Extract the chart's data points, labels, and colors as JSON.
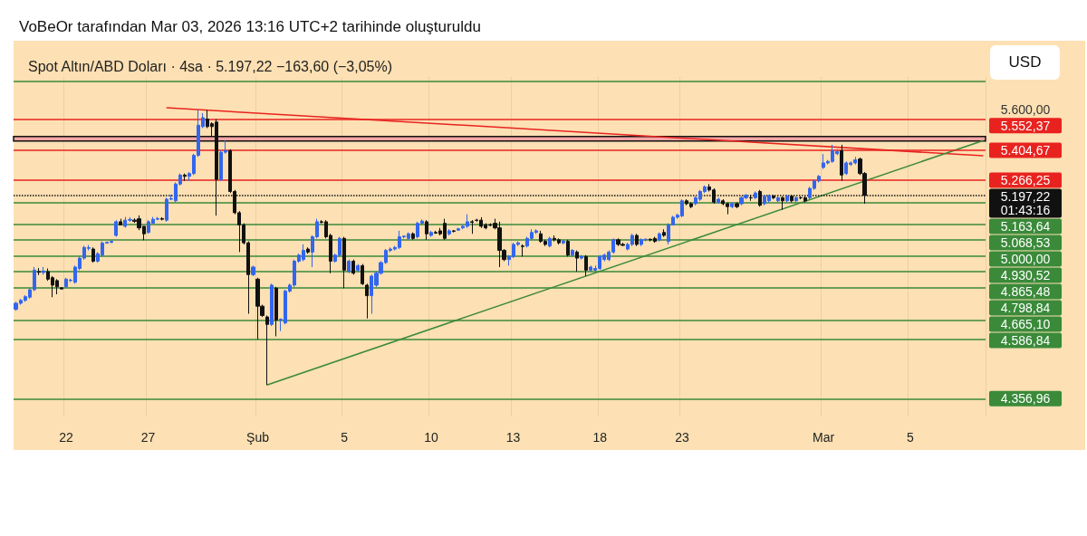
{
  "chart_data": {
    "type": "candlestick",
    "title": "VoBeOr tarafından Mar 03, 2026 13:16 UTC+2 tarihinde oluşturuldu",
    "subtitle": "Spot Altın/ABD Doları · 4sa · 5.197,22 −163,60 (−3,05%)",
    "annotations": [
      "USD"
    ],
    "categories": [
      null,
      null,
      null,
      null,
      null,
      null,
      null,
      null,
      null,
      null,
      null,
      "22",
      null,
      null,
      null,
      null,
      null,
      null,
      null,
      null,
      null,
      null,
      null,
      null,
      null,
      null,
      null,
      null,
      null,
      "27",
      null,
      null,
      null,
      null,
      null,
      null,
      null,
      null,
      null,
      null,
      null,
      null,
      null,
      null,
      null,
      null,
      null,
      null,
      null,
      null,
      null,
      null,
      null,
      "Şub",
      null,
      null,
      null,
      null,
      null,
      null,
      null,
      null,
      null,
      null,
      null,
      null,
      null,
      null,
      null,
      null,
      null,
      null,
      "5",
      null,
      null,
      null,
      null,
      null,
      null,
      null,
      null,
      null,
      null,
      null,
      null,
      null,
      null,
      null,
      null,
      null,
      null,
      "10",
      null,
      null,
      null,
      null,
      null,
      null,
      null,
      null,
      null,
      null,
      null,
      null,
      null,
      null,
      null,
      null,
      null,
      "13",
      null,
      null,
      null,
      null,
      null,
      null,
      null,
      null,
      null,
      null,
      null,
      null,
      null,
      null,
      null,
      null,
      null,
      null,
      "18",
      null,
      null,
      null,
      null,
      null,
      null,
      null,
      null,
      null,
      null,
      null,
      null,
      null,
      null,
      null,
      null,
      null,
      "23",
      null,
      null,
      null,
      null,
      null,
      null,
      null,
      null,
      null,
      null,
      null,
      null,
      null,
      null,
      null,
      null,
      null,
      null,
      null,
      null,
      null,
      null,
      null,
      null,
      null,
      null,
      null,
      null,
      null,
      null,
      "Mar",
      null,
      null,
      null,
      null,
      null,
      null,
      null,
      null,
      null,
      null,
      null,
      null,
      null,
      null,
      null,
      null,
      null,
      null,
      "5",
      null,
      null,
      null,
      null,
      null,
      null,
      null,
      null,
      null,
      null,
      null,
      null,
      null,
      null,
      null,
      null
    ],
    "ohlc": [
      [
        4708,
        4739,
        4702,
        4733
      ],
      [
        4733,
        4751,
        4727,
        4745
      ],
      [
        4745,
        4766,
        4739,
        4760
      ],
      [
        4758,
        4795,
        4752,
        4789
      ],
      [
        4789,
        4884,
        4783,
        4871
      ],
      [
        4865,
        4880,
        4850,
        4862
      ],
      [
        4861,
        4884,
        4852,
        4867
      ],
      [
        4865,
        4878,
        4826,
        4833
      ],
      [
        4839,
        4846,
        4758,
        4808
      ],
      [
        4827,
        4833,
        4770,
        4801
      ],
      [
        4797,
        4797,
        4792,
        4792
      ],
      [
        4801,
        4839,
        4795,
        4833
      ],
      [
        4827,
        4835,
        4821,
        4829
      ],
      [
        4820,
        4890,
        4814,
        4884
      ],
      [
        4878,
        4928,
        4871,
        4922
      ],
      [
        4922,
        4975,
        4915,
        4968
      ],
      [
        4964,
        4978,
        4955,
        4967
      ],
      [
        4961,
        4968,
        4903,
        4909
      ],
      [
        4909,
        4948,
        4903,
        4941
      ],
      [
        4935,
        4994,
        4928,
        4987
      ],
      [
        4987,
        4994,
        4984,
        4990
      ],
      [
        4990,
        4998,
        4986,
        4994
      ],
      [
        5020,
        5087,
        5014,
        5080
      ],
      [
        5080,
        5093,
        5066,
        5066
      ],
      [
        5060,
        5101,
        5054,
        5087
      ],
      [
        5087,
        5100,
        5080,
        5090
      ],
      [
        5087,
        5095,
        5075,
        5082
      ],
      [
        5093,
        5108,
        5043,
        5053
      ],
      [
        5060,
        5060,
        4999,
        5027
      ],
      [
        5033,
        5087,
        5027,
        5080
      ],
      [
        5073,
        5101,
        5073,
        5091
      ],
      [
        5091,
        5101,
        5087,
        5094
      ],
      [
        5094,
        5100,
        5086,
        5091
      ],
      [
        5087,
        5187,
        5080,
        5180
      ],
      [
        5180,
        5200,
        5176,
        5183
      ],
      [
        5173,
        5256,
        5166,
        5249
      ],
      [
        5249,
        5297,
        5242,
        5290
      ],
      [
        5290,
        5297,
        5263,
        5284
      ],
      [
        5284,
        5304,
        5263,
        5297
      ],
      [
        5297,
        5388,
        5290,
        5381
      ],
      [
        5381,
        5597,
        5374,
        5524
      ],
      [
        5517,
        5582,
        5510,
        5560
      ],
      [
        5553,
        5597,
        5510,
        5517
      ],
      [
        5531,
        5538,
        5473,
        5517
      ],
      [
        5539,
        5553,
        5107,
        5270
      ],
      [
        5270,
        5403,
        5263,
        5396
      ],
      [
        5396,
        5452,
        5389,
        5403
      ],
      [
        5403,
        5410,
        5208,
        5215
      ],
      [
        5215,
        5222,
        5113,
        5120
      ],
      [
        5120,
        5127,
        4948,
        5066
      ],
      [
        5066,
        5073,
        4981,
        4988
      ],
      [
        4988,
        4994,
        4690,
        4852
      ],
      [
        4852,
        4890,
        4846,
        4884
      ],
      [
        4833,
        4839,
        4587,
        4721
      ],
      [
        4721,
        4727,
        4677,
        4683
      ],
      [
        4677,
        4683,
        4409,
        4647
      ],
      [
        4647,
        4814,
        4641,
        4808
      ],
      [
        4795,
        4801,
        4599,
        4665
      ],
      [
        4665,
        4671,
        4620,
        4668
      ],
      [
        4653,
        4789,
        4647,
        4783
      ],
      [
        4783,
        4814,
        4777,
        4808
      ],
      [
        4808,
        4916,
        4801,
        4909
      ],
      [
        4909,
        4941,
        4903,
        4935
      ],
      [
        4916,
        4981,
        4909,
        4955
      ],
      [
        4961,
        4968,
        4941,
        4948
      ],
      [
        4948,
        5020,
        4884,
        5014
      ],
      [
        5014,
        5093,
        5007,
        5080
      ],
      [
        5080,
        5087,
        5073,
        5077
      ],
      [
        5080,
        5087,
        5007,
        5014
      ],
      [
        5020,
        5027,
        4858,
        4909
      ],
      [
        4909,
        4941,
        4903,
        4935
      ],
      [
        4935,
        5014,
        4928,
        5007
      ],
      [
        5007,
        5014,
        4795,
        4871
      ],
      [
        4865,
        4916,
        4858,
        4909
      ],
      [
        4909,
        4916,
        4852,
        4858
      ],
      [
        4871,
        4897,
        4865,
        4890
      ],
      [
        4890,
        4897,
        4808,
        4814
      ],
      [
        4808,
        4814,
        4671,
        4764
      ],
      [
        4764,
        4852,
        4690,
        4846
      ],
      [
        4808,
        4865,
        4801,
        4858
      ],
      [
        4858,
        4909,
        4852,
        4903
      ],
      [
        4903,
        4961,
        4897,
        4955
      ],
      [
        4955,
        4968,
        4948,
        4961
      ],
      [
        4961,
        4974,
        4955,
        4968
      ],
      [
        4968,
        5040,
        4961,
        5014
      ],
      [
        5014,
        5020,
        5007,
        5017
      ],
      [
        5007,
        5033,
        5001,
        5027
      ],
      [
        5027,
        5033,
        5001,
        5007
      ],
      [
        5014,
        5080,
        5007,
        5073
      ],
      [
        5073,
        5090,
        5066,
        5083
      ],
      [
        5080,
        5087,
        5001,
        5027
      ],
      [
        5020,
        5040,
        5014,
        5033
      ],
      [
        5033,
        5040,
        5027,
        5030
      ],
      [
        5040,
        5053,
        5020,
        5027
      ],
      [
        5073,
        5093,
        5001,
        5007
      ],
      [
        5027,
        5047,
        5020,
        5040
      ],
      [
        5040,
        5043,
        5033,
        5038
      ],
      [
        5043,
        5053,
        5040,
        5049
      ],
      [
        5053,
        5066,
        5047,
        5060
      ],
      [
        5060,
        5113,
        5053,
        5080
      ],
      [
        5080,
        5087,
        5027,
        5077
      ],
      [
        5087,
        5093,
        5080,
        5086
      ],
      [
        5087,
        5100,
        5053,
        5060
      ],
      [
        5066,
        5073,
        5047,
        5053
      ],
      [
        5066,
        5073,
        5060,
        5064
      ],
      [
        5073,
        5093,
        5047,
        5053
      ],
      [
        5053,
        5080,
        4884,
        4955
      ],
      [
        4955,
        4961,
        4909,
        4916
      ],
      [
        4916,
        4935,
        4890,
        4929
      ],
      [
        4929,
        4988,
        4922,
        4981
      ],
      [
        4981,
        4994,
        4974,
        4988
      ],
      [
        4974,
        4981,
        4929,
        4972
      ],
      [
        4974,
        5014,
        4968,
        5007
      ],
      [
        5007,
        5047,
        5001,
        5033
      ],
      [
        5033,
        5047,
        5027,
        5040
      ],
      [
        5027,
        5040,
        4988,
        4994
      ],
      [
        4994,
        5001,
        4974,
        4981
      ],
      [
        4974,
        5014,
        4968,
        5007
      ],
      [
        5007,
        5020,
        4994,
        5001
      ],
      [
        5001,
        5007,
        4981,
        4988
      ],
      [
        4988,
        5001,
        4981,
        4994
      ],
      [
        4994,
        5001,
        4929,
        4935
      ],
      [
        4935,
        4961,
        4929,
        4955
      ],
      [
        4948,
        4955,
        4865,
        4922
      ],
      [
        4922,
        4935,
        4916,
        4929
      ],
      [
        4929,
        4935,
        4846,
        4871
      ],
      [
        4871,
        4890,
        4865,
        4884
      ],
      [
        4871,
        4890,
        4865,
        4878
      ],
      [
        4878,
        4935,
        4871,
        4929
      ],
      [
        4916,
        4941,
        4909,
        4935
      ],
      [
        4916,
        4955,
        4909,
        4948
      ],
      [
        4948,
        5007,
        4941,
        5001
      ],
      [
        5001,
        5007,
        4974,
        4981
      ],
      [
        4981,
        4988,
        4974,
        4977
      ],
      [
        4961,
        4988,
        4955,
        4981
      ],
      [
        4981,
        5027,
        4974,
        5020
      ],
      [
        5020,
        5027,
        4974,
        4981
      ],
      [
        4981,
        5007,
        4974,
        5001
      ],
      [
        5001,
        5007,
        4994,
        5003
      ],
      [
        5003,
        5007,
        4994,
        5001
      ],
      [
        5007,
        5014,
        4988,
        4994
      ],
      [
        5001,
        5033,
        4994,
        5027
      ],
      [
        5033,
        5047,
        5014,
        5020
      ],
      [
        4994,
        5073,
        4981,
        5066
      ],
      [
        5066,
        5106,
        5066,
        5100
      ],
      [
        5100,
        5116,
        5093,
        5109
      ],
      [
        5106,
        5180,
        5100,
        5173
      ],
      [
        5173,
        5180,
        5153,
        5160
      ],
      [
        5160,
        5166,
        5140,
        5147
      ],
      [
        5160,
        5193,
        5153,
        5187
      ],
      [
        5180,
        5222,
        5173,
        5215
      ],
      [
        5215,
        5242,
        5208,
        5236
      ],
      [
        5236,
        5249,
        5215,
        5222
      ],
      [
        5222,
        5229,
        5160,
        5167
      ],
      [
        5167,
        5187,
        5160,
        5180
      ],
      [
        5173,
        5180,
        5153,
        5160
      ],
      [
        5160,
        5166,
        5113,
        5147
      ],
      [
        5147,
        5166,
        5140,
        5160
      ],
      [
        5160,
        5166,
        5140,
        5147
      ],
      [
        5160,
        5193,
        5153,
        5187
      ],
      [
        5187,
        5204,
        5180,
        5198
      ],
      [
        5187,
        5200,
        5173,
        5186
      ],
      [
        5187,
        5215,
        5180,
        5208
      ],
      [
        5215,
        5222,
        5147,
        5153
      ],
      [
        5160,
        5200,
        5153,
        5194
      ],
      [
        5173,
        5200,
        5166,
        5194
      ],
      [
        5194,
        5200,
        5180,
        5187
      ],
      [
        5173,
        5193,
        5166,
        5187
      ],
      [
        5187,
        5193,
        5133,
        5173
      ],
      [
        5173,
        5200,
        5166,
        5194
      ],
      [
        5194,
        5200,
        5166,
        5173
      ],
      [
        5173,
        5193,
        5166,
        5187
      ],
      [
        5187,
        5193,
        5180,
        5186
      ],
      [
        5187,
        5193,
        5166,
        5173
      ],
      [
        5187,
        5236,
        5180,
        5229
      ],
      [
        5229,
        5270,
        5222,
        5263
      ],
      [
        5263,
        5290,
        5256,
        5284
      ],
      [
        5325,
        5387,
        5318,
        5346
      ],
      [
        5346,
        5360,
        5339,
        5353
      ],
      [
        5353,
        5431,
        5346,
        5403
      ],
      [
        5389,
        5410,
        5382,
        5399
      ],
      [
        5403,
        5431,
        5263,
        5290
      ],
      [
        5297,
        5353,
        5290,
        5346
      ],
      [
        5339,
        5353,
        5332,
        5346
      ],
      [
        5346,
        5374,
        5339,
        5360
      ],
      [
        5364,
        5371,
        5290,
        5297
      ],
      [
        5297,
        5304,
        5160,
        5197.22
      ],
      null,
      null,
      null,
      null,
      null,
      null,
      null,
      null,
      null,
      null,
      null,
      null,
      null,
      null,
      null,
      null,
      null,
      null,
      null,
      null,
      null,
      null,
      null,
      null,
      null,
      null
    ],
    "colors": [
      "#3366ee",
      "#3366ee",
      "#3366ee",
      "#3366ee",
      "#3366ee",
      "#111111",
      "#3366ee",
      "#111111",
      "#111111",
      "#111111",
      "#111111",
      "#3366ee",
      "#3366ee",
      "#3366ee",
      "#3366ee",
      "#3366ee",
      "#3366ee",
      "#111111",
      "#3366ee",
      "#3366ee",
      "#3366ee",
      "#3366ee",
      "#3366ee",
      "#111111",
      "#3366ee",
      "#3366ee",
      "#111111",
      "#111111",
      "#111111",
      "#3366ee",
      "#3366ee",
      "#3366ee",
      "#111111",
      "#3366ee",
      "#3366ee",
      "#3366ee",
      "#3366ee",
      "#111111",
      "#3366ee",
      "#3366ee",
      "#3366ee",
      "#3366ee",
      "#111111",
      "#111111",
      "#111111",
      "#3366ee",
      "#3366ee",
      "#111111",
      "#111111",
      "#111111",
      "#111111",
      "#111111",
      "#3366ee",
      "#111111",
      "#111111",
      "#111111",
      "#3366ee",
      "#111111",
      "#3366ee",
      "#3366ee",
      "#3366ee",
      "#3366ee",
      "#3366ee",
      "#3366ee",
      "#111111",
      "#3366ee",
      "#3366ee",
      "#111111",
      "#111111",
      "#111111",
      "#3366ee",
      "#3366ee",
      "#111111",
      "#3366ee",
      "#111111",
      "#3366ee",
      "#111111",
      "#111111",
      "#3366ee",
      "#3366ee",
      "#3366ee",
      "#3366ee",
      "#3366ee",
      "#3366ee",
      "#3366ee",
      "#3366ee",
      "#3366ee",
      "#111111",
      "#3366ee",
      "#3366ee",
      "#111111",
      "#3366ee",
      "#111111",
      "#111111",
      "#111111",
      "#3366ee",
      "#111111",
      "#3366ee",
      "#3366ee",
      "#3366ee",
      "#111111",
      "#111111",
      "#111111",
      "#111111",
      "#111111",
      "#111111",
      "#111111",
      "#111111",
      "#3366ee",
      "#3366ee",
      "#3366ee",
      "#111111",
      "#3366ee",
      "#3366ee",
      "#3366ee",
      "#111111",
      "#111111",
      "#3366ee",
      "#111111",
      "#111111",
      "#3366ee",
      "#111111",
      "#3366ee",
      "#111111",
      "#3366ee",
      "#111111",
      "#3366ee",
      "#3366ee",
      "#3366ee",
      "#3366ee",
      "#3366ee",
      "#3366ee",
      "#111111",
      "#111111",
      "#3366ee",
      "#3366ee",
      "#111111",
      "#3366ee",
      "#3366ee",
      "#111111",
      "#111111",
      "#3366ee",
      "#111111",
      "#3366ee",
      "#3366ee",
      "#3366ee",
      "#3366ee",
      "#111111",
      "#111111",
      "#3366ee",
      "#3366ee",
      "#3366ee",
      "#111111",
      "#111111",
      "#3366ee",
      "#111111",
      "#111111",
      "#3366ee",
      "#111111",
      "#3366ee",
      "#3366ee",
      "#111111",
      "#3366ee",
      "#111111",
      "#3366ee",
      "#3366ee",
      "#111111",
      "#3366ee",
      "#111111",
      "#3366ee",
      "#111111",
      "#3366ee",
      "#111111",
      "#111111",
      "#3366ee",
      "#3366ee",
      "#3366ee",
      "#3366ee",
      "#3366ee",
      "#3366ee",
      "#3366ee",
      "#111111",
      "#3366ee",
      "#3366ee",
      "#3366ee",
      "#111111",
      "#111111",
      null,
      null,
      null,
      null,
      null,
      null,
      null,
      null,
      null,
      null,
      null,
      null,
      null,
      null,
      null,
      null,
      null,
      null,
      null,
      null,
      null,
      null,
      null,
      null,
      null,
      null
    ],
    "series": [
      {
        "type": "line",
        "color": "#e8231f",
        "values": [
          null,
          null,
          null,
          null,
          null,
          null,
          null,
          null,
          null,
          null,
          null,
          null,
          null,
          null,
          null,
          null,
          null,
          null,
          null,
          null,
          null,
          null,
          null,
          null,
          null,
          null,
          null,
          null,
          null,
          null,
          null,
          null,
          null,
          5608,
          null,
          null,
          null,
          null,
          null,
          null,
          null,
          null,
          null,
          null,
          null,
          null,
          null,
          null,
          null,
          null,
          null,
          null,
          null,
          null,
          null,
          null,
          null,
          null,
          null,
          null,
          null,
          null,
          null,
          null,
          null,
          null,
          null,
          null,
          null,
          null,
          null,
          null,
          null,
          null,
          null,
          null,
          null,
          null,
          null,
          null,
          null,
          null,
          null,
          null,
          null,
          null,
          null,
          null,
          null,
          null,
          null,
          null,
          null,
          null,
          null,
          null,
          null,
          null,
          null,
          null,
          null,
          null,
          null,
          null,
          null,
          null,
          null,
          null,
          null,
          null,
          null,
          null,
          null,
          null,
          null,
          null,
          null,
          null,
          null,
          null,
          null,
          null,
          null,
          null,
          null,
          null,
          null,
          null,
          null,
          null,
          null,
          null,
          null,
          null,
          null,
          null,
          null,
          null,
          null,
          null,
          null,
          null,
          null,
          null,
          null,
          null,
          null,
          null,
          null,
          null,
          null,
          null,
          null,
          null,
          null,
          null,
          null,
          null,
          null,
          null,
          null,
          null,
          null,
          null,
          null,
          null,
          null,
          null,
          null,
          null,
          null,
          null,
          null,
          null,
          null,
          null,
          null,
          null,
          null,
          null,
          null,
          null,
          null,
          null,
          null,
          null,
          null,
          null,
          null,
          null,
          null,
          null,
          null,
          null,
          null,
          null,
          null,
          null,
          null,
          null,
          null,
          null,
          null,
          null,
          null,
          null,
          null,
          null,
          null,
          null,
          null,
          null,
          5379
        ]
      },
      {
        "type": "line",
        "color": "#3a8a3a",
        "values": [
          null,
          null,
          null,
          null,
          null,
          null,
          null,
          null,
          null,
          null,
          null,
          null,
          null,
          null,
          null,
          null,
          null,
          null,
          null,
          null,
          null,
          null,
          null,
          null,
          null,
          null,
          null,
          null,
          null,
          null,
          null,
          null,
          null,
          null,
          null,
          null,
          null,
          null,
          null,
          null,
          null,
          null,
          null,
          null,
          null,
          null,
          null,
          null,
          null,
          null,
          null,
          null,
          null,
          null,
          null,
          4409,
          null,
          null,
          null,
          null,
          null,
          null,
          null,
          null,
          null,
          null,
          null,
          null,
          null,
          null,
          null,
          null,
          null,
          null,
          null,
          null,
          null,
          null,
          null,
          null,
          null,
          null,
          null,
          null,
          null,
          null,
          null,
          null,
          null,
          null,
          null,
          null,
          null,
          null,
          null,
          null,
          null,
          null,
          null,
          null,
          null,
          null,
          null,
          null,
          null,
          null,
          null,
          null,
          null,
          null,
          null,
          null,
          null,
          null,
          null,
          null,
          null,
          null,
          null,
          null,
          null,
          null,
          null,
          null,
          null,
          null,
          null,
          null,
          null,
          null,
          null,
          null,
          null,
          null,
          null,
          null,
          null,
          null,
          null,
          null,
          null,
          null,
          null,
          null,
          null,
          null,
          null,
          null,
          null,
          null,
          null,
          null,
          null,
          null,
          null,
          null,
          null,
          null,
          null,
          null,
          null,
          null,
          null,
          null,
          null,
          null,
          null,
          null,
          null,
          null,
          null,
          null,
          null,
          null,
          null,
          null,
          null,
          null,
          null,
          null,
          null,
          null,
          null,
          null,
          null,
          null,
          null,
          null,
          null,
          null,
          null,
          null,
          null,
          null,
          null,
          null,
          null,
          null,
          null,
          null,
          null,
          null,
          null,
          null,
          null,
          null,
          null,
          null,
          null,
          null,
          null,
          null,
          5451
        ]
      }
    ],
    "ref_lines": [
      {
        "axis": "y",
        "value": 5737,
        "color": "#3a8a3a"
      },
      {
        "axis": "y",
        "value": 5552.37,
        "label": "5.552,37",
        "color": "#e8231f"
      },
      {
        "axis": "y",
        "value": 5404.67,
        "color": "#e8231f"
      },
      {
        "axis": "y",
        "value": 5266.25,
        "color": "#e8231f"
      },
      {
        "axis": "y",
        "value": 5197.22,
        "label": "5.197,22\n01:43:16",
        "color": "#111111",
        "line_style": "dotted"
      },
      {
        "axis": "y",
        "value": 5163.64,
        "label": "5.163,64",
        "color": "#3a8a3a"
      },
      {
        "axis": "y",
        "value": 5068.53,
        "label": "5.068,53",
        "color": "#3a8a3a"
      },
      {
        "axis": "y",
        "value": 5000,
        "label": "5.000,00",
        "color": "#3a8a3a"
      },
      {
        "axis": "y",
        "value": 4930.52,
        "label": "4.930,52",
        "color": "#3a8a3a"
      },
      {
        "axis": "y",
        "value": 4865.48,
        "label": "4.865,48",
        "color": "#3a8a3a"
      },
      {
        "axis": "y",
        "value": 4798.84,
        "label": "4.798,84",
        "color": "#3a8a3a"
      },
      {
        "axis": "y",
        "value": 4665.1,
        "label": "4.665,10",
        "color": "#3a8a3a"
      },
      {
        "axis": "y",
        "value": 4586.84,
        "label": "4.586,84",
        "color": "#3a8a3a"
      },
      {
        "axis": "y",
        "value": 4356.96,
        "color": "#3a8a3a"
      }
    ],
    "bands": [
      {
        "axis": "y",
        "from": 5449,
        "to": 5470,
        "color": "#f4a3a3"
      }
    ],
    "ylim": [
      4290,
      5760
    ],
    "yticks": [
      {
        "value": 5600,
        "label": "5.600,00"
      },
      {
        "value": 5404.67,
        "label": "5.404,67"
      },
      {
        "value": 5266.25,
        "label": "5.266,25"
      },
      {
        "value": 4356.96,
        "label": "4.356,96"
      }
    ],
    "log": true,
    "grid": "x"
  }
}
